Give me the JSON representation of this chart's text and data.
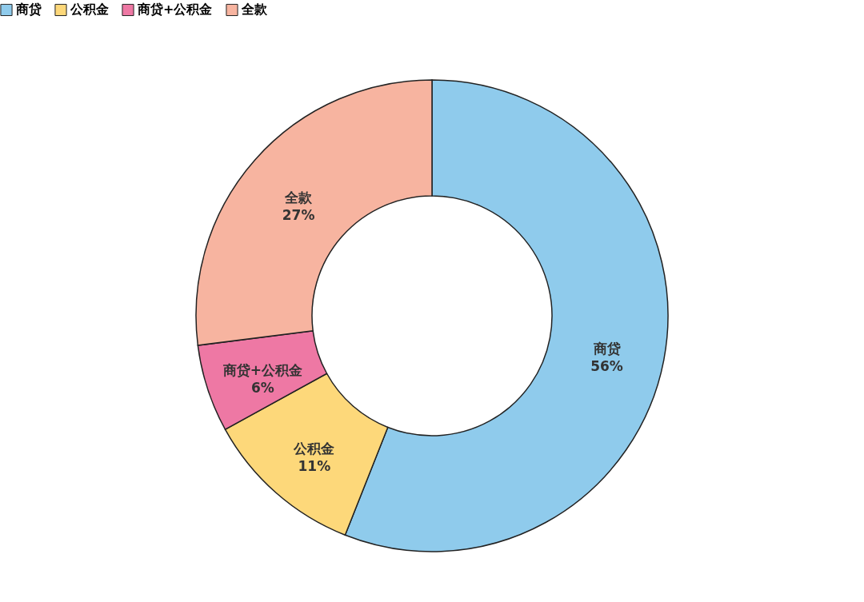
{
  "chart_data": {
    "type": "donut",
    "categories": [
      "商贷",
      "公积金",
      "商贷+公积金",
      "全款"
    ],
    "values": [
      56,
      11,
      6,
      27
    ],
    "value_labels": [
      "56%",
      "11%",
      "6%",
      "27%"
    ],
    "colors": [
      "#8fcbec",
      "#fdd87a",
      "#ee78a4",
      "#f7b4a0"
    ],
    "legend": "top"
  }
}
